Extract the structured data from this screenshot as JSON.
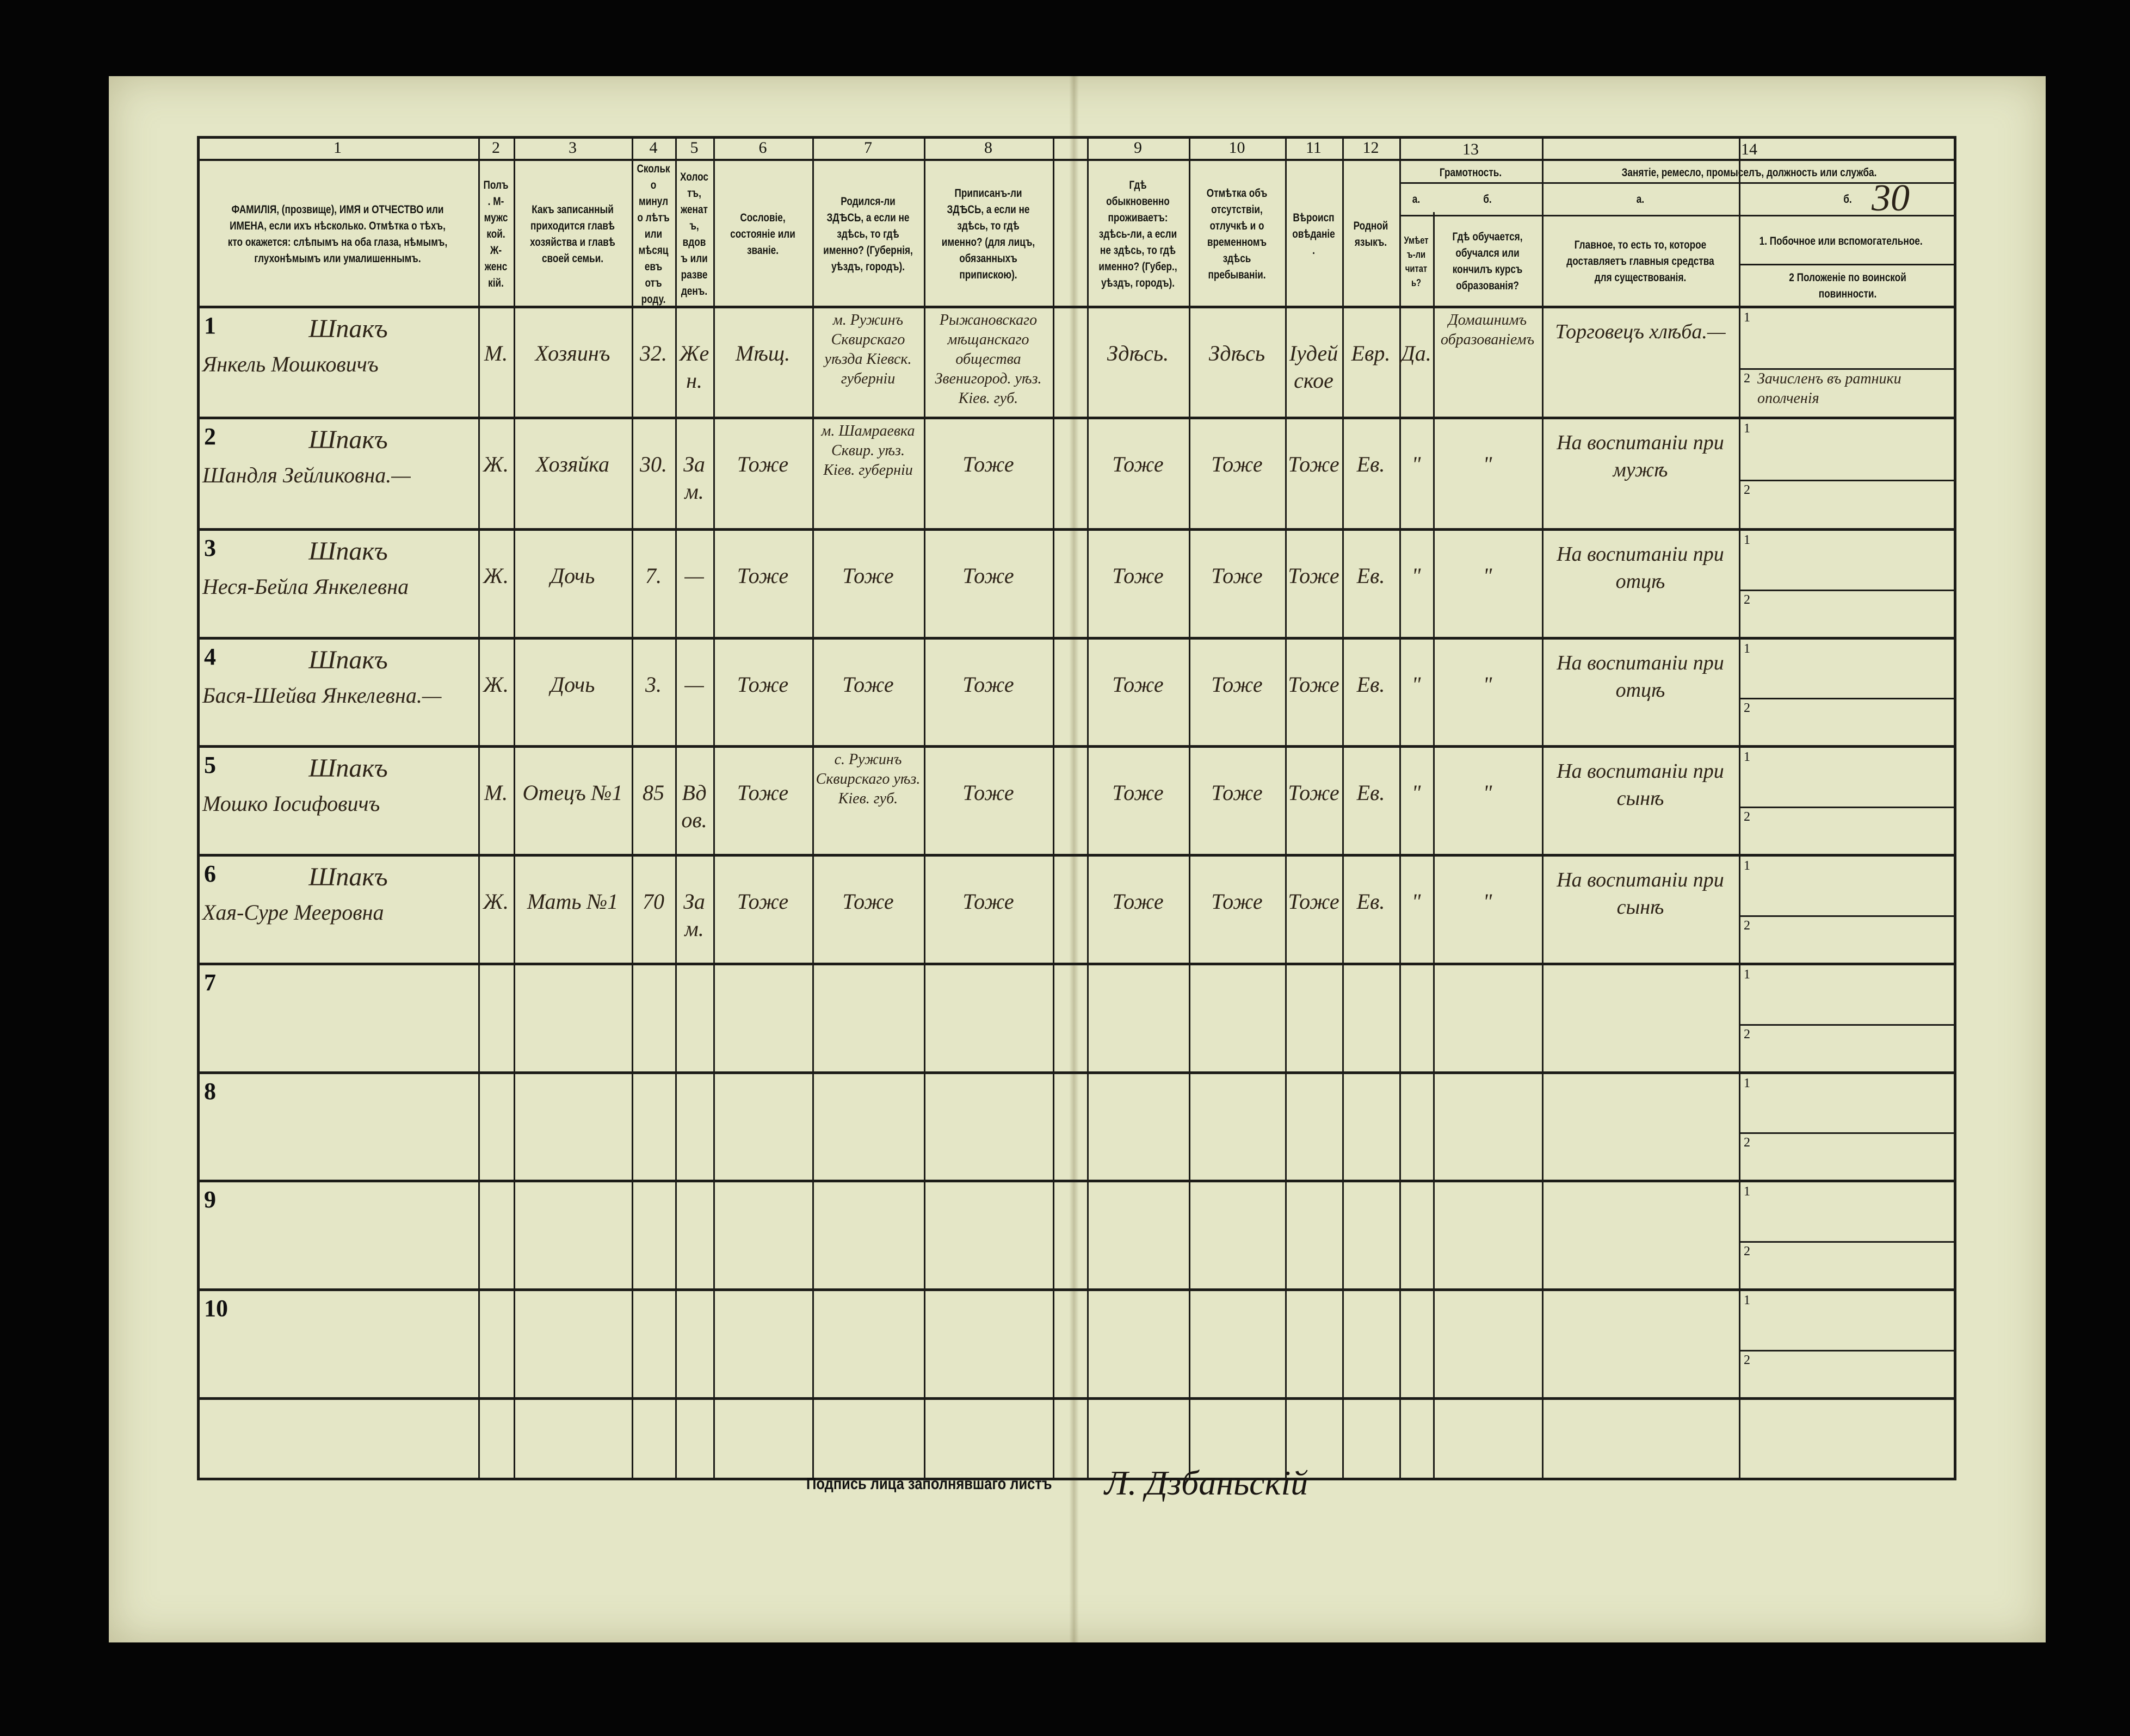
{
  "header": {
    "page_number": "30",
    "columns": [
      {
        "num": "1",
        "label": "ФАМИЛІЯ, (прозвище), ИМЯ и ОТЧЕСТВО или ИМЕНА, если ихъ нѣсколько. Отмѣтка о тѣхъ, кто окажется: слѣпымъ на оба глаза, нѣмымъ, глухонѣмымъ или умалишеннымъ."
      },
      {
        "num": "2",
        "label": "Полъ. М-мужской. Ж-женскій."
      },
      {
        "num": "3",
        "label": "Какъ записанный приходится главѣ хозяйства и главѣ своей семьи."
      },
      {
        "num": "4",
        "label": "Сколько минуло лѣтъ или мѣсяцевъ отъ роду."
      },
      {
        "num": "5",
        "label": "Холостъ, женатъ, вдовъ или разведенъ."
      },
      {
        "num": "6",
        "label": "Сословіе, состояніе или званіе."
      },
      {
        "num": "7",
        "label": "Родился-ли ЗДѢСЬ, а если не здѣсь, то гдѣ именно? (Губернія, уѣздъ, городъ)."
      },
      {
        "num": "8",
        "label": "Приписанъ-ли ЗДѢСЬ, а если не здѣсь, то гдѣ именно? (для лицъ, обязанныхъ припискою)."
      },
      {
        "num": "9",
        "label": "Гдѣ обыкновенно проживаетъ: здѣсь-ли, а если не здѣсь, то гдѣ именно? (Губер., уѣздъ, городъ)."
      },
      {
        "num": "10",
        "label": "Отмѣтка объ отсутствіи, отлучкѣ и о временномъ здѣсь пребываніи."
      },
      {
        "num": "11",
        "label": "Вѣроисповѣданіе."
      },
      {
        "num": "12",
        "label": "Родной языкъ."
      },
      {
        "num": "13",
        "label": "Грамотность.",
        "sub": [
          {
            "letter": "а.",
            "label": "Умѣетъ-ли читать?"
          },
          {
            "letter": "б.",
            "label": "Гдѣ обучается, обучался или кончилъ курсъ образованія?"
          }
        ]
      },
      {
        "num": "14",
        "label": "Занятіе, ремесло, промыселъ, должность или служба.",
        "sub": [
          {
            "letter": "а.",
            "label": "Главное, то есть то, которое доставляетъ главныя средства для существованія."
          },
          {
            "letter": "б.",
            "label_1": "1. Побочное или вспомогательное.",
            "label_2": "2 Положеніе по воинской повинности."
          }
        ]
      }
    ]
  },
  "rows": [
    {
      "n": "1",
      "surname": "Шпакъ",
      "name": "Янкель Мошковичъ",
      "sex": "М.",
      "relation": "Хозяинъ",
      "age": "32.",
      "marital": "Жен.",
      "estate": "Мѣщ.",
      "born": "м. Ружинъ Сквирскаго уѣзда Кіевск. губерніи",
      "registered": "Рыжановскаго мѣщанскаго общества Звенигород. уѣз. Кіев. губ.",
      "residence": "Здѣсь.",
      "absence": "Здѣсь",
      "religion": "Іудейское",
      "language": "Евр.",
      "can_read": "Да.",
      "education": "Домашнимъ образованіемъ",
      "occupation": "Торговецъ хлѣба.—",
      "side_1": "",
      "side_2": "Зачисленъ въ ратники ополченія"
    },
    {
      "n": "2",
      "surname": "Шпакъ",
      "name": "Шандля Зейликовна.—",
      "sex": "Ж.",
      "relation": "Хозяйка",
      "age": "30.",
      "marital": "Зам.",
      "estate": "Тоже",
      "born": "м. Шамраевка Сквир. уѣз. Кіев. губерніи",
      "registered": "Тоже",
      "residence": "Тоже",
      "absence": "Тоже",
      "religion": "Тоже",
      "language": "Ев.",
      "can_read": "\"",
      "education": "\"",
      "occupation": "На воспитаніи при мужѣ",
      "side_1": "",
      "side_2": ""
    },
    {
      "n": "3",
      "surname": "Шпакъ",
      "name": "Неся-Бейла Янкелевна",
      "sex": "Ж.",
      "relation": "Дочь",
      "age": "7.",
      "marital": "—",
      "estate": "Тоже",
      "born": "Тоже",
      "registered": "Тоже",
      "residence": "Тоже",
      "absence": "Тоже",
      "religion": "Тоже",
      "language": "Ев.",
      "can_read": "\"",
      "education": "\"",
      "occupation": "На воспитаніи при отцѣ",
      "side_1": "",
      "side_2": ""
    },
    {
      "n": "4",
      "surname": "Шпакъ",
      "name": "Бася-Шейва Янкелевна.—",
      "sex": "Ж.",
      "relation": "Дочь",
      "age": "3.",
      "marital": "—",
      "estate": "Тоже",
      "born": "Тоже",
      "registered": "Тоже",
      "residence": "Тоже",
      "absence": "Тоже",
      "religion": "Тоже",
      "language": "Ев.",
      "can_read": "\"",
      "education": "\"",
      "occupation": "На воспитаніи при отцѣ",
      "side_1": "",
      "side_2": ""
    },
    {
      "n": "5",
      "surname": "Шпакъ",
      "name": "Мошко Іосифовичъ",
      "sex": "М.",
      "relation": "Отецъ №1",
      "age": "85",
      "marital": "Вдов.",
      "estate": "Тоже",
      "born": "с. Ружинъ Сквирскаго уѣз. Кіев. губ.",
      "registered": "Тоже",
      "residence": "Тоже",
      "absence": "Тоже",
      "religion": "Тоже",
      "language": "Ев.",
      "can_read": "\"",
      "education": "\"",
      "occupation": "На воспитаніи при сынѣ",
      "side_1": "",
      "side_2": ""
    },
    {
      "n": "6",
      "surname": "Шпакъ",
      "name": "Хая-Суре Мееровна",
      "sex": "Ж.",
      "relation": "Мать №1",
      "age": "70",
      "marital": "Зам.",
      "estate": "Тоже",
      "born": "Тоже",
      "registered": "Тоже",
      "residence": "Тоже",
      "absence": "Тоже",
      "religion": "Тоже",
      "language": "Ев.",
      "can_read": "\"",
      "education": "\"",
      "occupation": "На воспитаніи при сынѣ",
      "side_1": "",
      "side_2": ""
    },
    {
      "n": "7"
    },
    {
      "n": "8"
    },
    {
      "n": "9"
    },
    {
      "n": "10"
    }
  ],
  "footer": {
    "signature_label": "Подпись лица заполнявшаго листъ",
    "signature": "Л. Дзбаньскій"
  },
  "colors": {
    "paper": "#e4e6c6",
    "ink": "#2e2418",
    "print": "#151510",
    "background": "#050505"
  }
}
